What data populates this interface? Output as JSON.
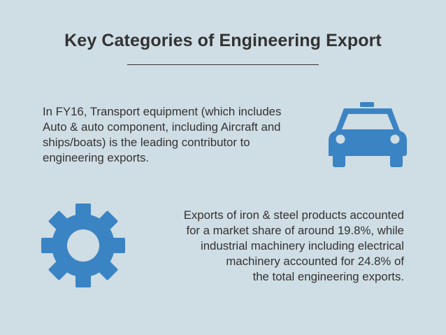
{
  "slide": {
    "title": "Key Categories of Engineering Export",
    "paragraph_top": {
      "lines": [
        "In FY16, Transport equipment (which includes",
        "Auto & auto component, including Aircraft and",
        "ships/boats) is the leading contributor to",
        "engineering exports."
      ]
    },
    "paragraph_bottom": {
      "lines": [
        "Exports of iron & steel products accounted",
        "for a market share of around 19.8%, while",
        "industrial machinery including electrical",
        "machinery accounted for 24.8% of",
        "the total engineering exports."
      ]
    },
    "icons": {
      "top": "car-icon",
      "bottom": "gear-icon"
    },
    "colors": {
      "background": "#cfdde4",
      "icon_blue": "#3b84c4",
      "text": "#333333"
    }
  }
}
